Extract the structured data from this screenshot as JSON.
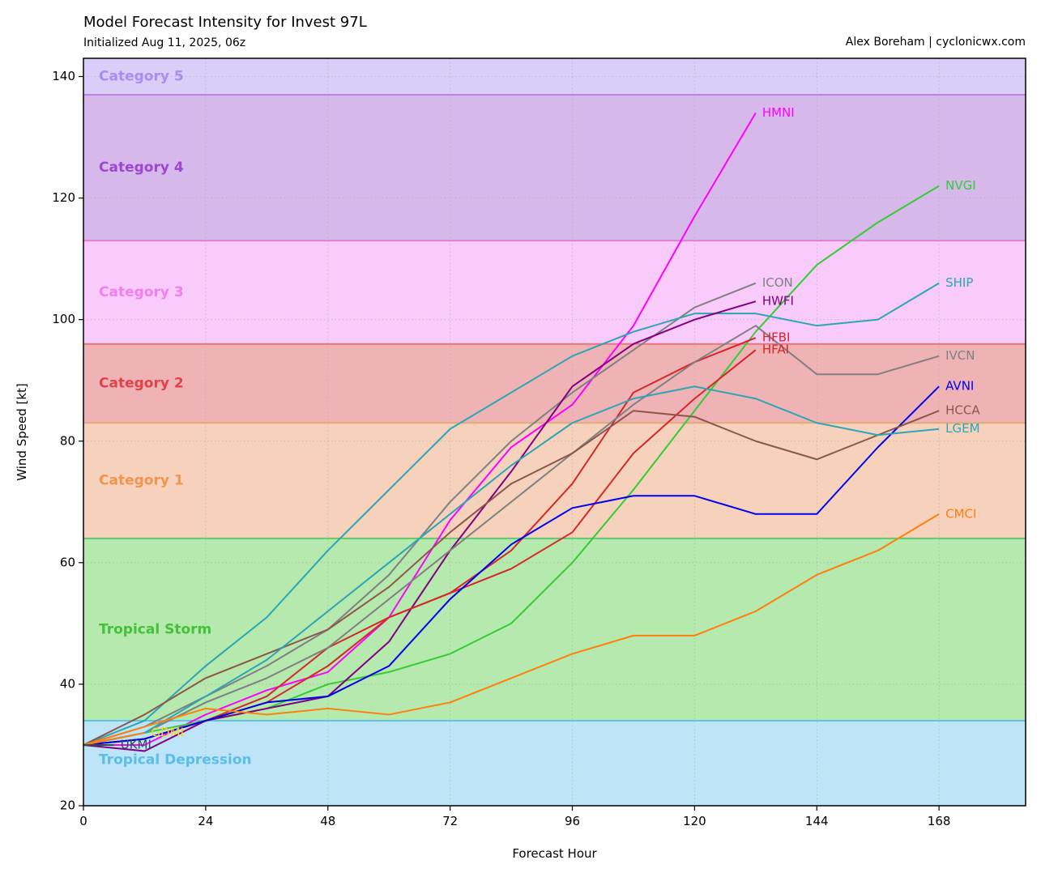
{
  "header": {
    "title": "Model Forecast Intensity for Invest 97L",
    "subtitle": "Initialized Aug 11, 2025, 06z",
    "credit": "Alex Boreham | cyclonicwx.com"
  },
  "chart_data": {
    "type": "line",
    "title": "Model Forecast Intensity for Invest 97L",
    "subtitle": "Initialized Aug 11, 2025, 06z",
    "xlabel": "Forecast Hour",
    "ylabel": "Wind Speed [kt]",
    "xlim": [
      0,
      185
    ],
    "ylim": [
      20,
      143
    ],
    "xticks": [
      0,
      24,
      48,
      72,
      96,
      120,
      144,
      168
    ],
    "yticks": [
      20,
      40,
      60,
      80,
      100,
      120,
      140
    ],
    "grid": true,
    "bands": [
      {
        "label": "Tropical Depression",
        "from": 20,
        "to": 34,
        "fill": "#bde5f7",
        "line": "#5fc4ea",
        "text": "#5bbde8"
      },
      {
        "label": "Tropical Storm",
        "from": 34,
        "to": 64,
        "fill": "#b5e9ad",
        "line": "#62c86e",
        "text": "#44c03a"
      },
      {
        "label": "Category 1",
        "from": 64,
        "to": 83,
        "fill": "#f6d2bd",
        "line": "#e0ab77",
        "text": "#ef9550"
      },
      {
        "label": "Category 2",
        "from": 83,
        "to": 96,
        "fill": "#efb3b6",
        "line": "#e57778",
        "text": "#df4347"
      },
      {
        "label": "Category 3",
        "from": 96,
        "to": 113,
        "fill": "#f8cbfb",
        "line": "#e47cd4",
        "text": "#f27fef"
      },
      {
        "label": "Category 4",
        "from": 113,
        "to": 137,
        "fill": "#d6b8eb",
        "line": "#bc80ea",
        "text": "#9e46d2"
      },
      {
        "label": "Category 5",
        "from": 137,
        "to": 143,
        "fill": "#d8cef8",
        "line": "#bc80ea",
        "text": "#a68ff0"
      }
    ],
    "series": [
      {
        "name": "HMNI",
        "color": "#ff00ff",
        "x": [
          0,
          6,
          12,
          24,
          36,
          48,
          60,
          72,
          84,
          96,
          108,
          120,
          132
        ],
        "y": [
          30,
          30,
          30,
          35,
          39,
          42,
          51,
          67,
          79,
          86,
          99,
          117,
          134
        ]
      },
      {
        "name": "NVGI",
        "color": "#33cc33",
        "x": [
          0,
          12,
          24,
          36,
          48,
          60,
          72,
          84,
          96,
          108,
          120,
          132,
          144,
          156,
          168
        ],
        "y": [
          30,
          32,
          34,
          36,
          40,
          42,
          45,
          50,
          60,
          72,
          85,
          98,
          109,
          116,
          122
        ]
      },
      {
        "name": "ICON",
        "color": "#808080",
        "x": [
          0,
          12,
          24,
          36,
          48,
          60,
          72,
          84,
          96,
          108,
          120,
          132
        ],
        "y": [
          30,
          33,
          38,
          43,
          49,
          58,
          70,
          80,
          88,
          95,
          102,
          106
        ]
      },
      {
        "name": "SHIP",
        "color": "#2ca5b5",
        "x": [
          0,
          12,
          24,
          36,
          48,
          60,
          72,
          84,
          96,
          108,
          120,
          132,
          144,
          156,
          168
        ],
        "y": [
          30,
          34,
          43,
          51,
          62,
          72,
          82,
          88,
          94,
          98,
          101,
          101,
          99,
          100,
          106
        ]
      },
      {
        "name": "HWFI",
        "color": "#800080",
        "x": [
          0,
          12,
          24,
          36,
          48,
          60,
          72,
          84,
          96,
          108,
          120,
          132
        ],
        "y": [
          30,
          29,
          34,
          36,
          38,
          47,
          62,
          75,
          89,
          96,
          100,
          103
        ]
      },
      {
        "name": "HFBI",
        "color": "#d62728",
        "x": [
          0,
          12,
          24,
          36,
          48,
          60,
          72,
          84,
          96,
          108,
          120,
          132
        ],
        "y": [
          30,
          31,
          34,
          37,
          43,
          51,
          55,
          62,
          73,
          88,
          93,
          97
        ]
      },
      {
        "name": "HFAI",
        "color": "#d62728",
        "x": [
          0,
          12,
          24,
          36,
          48,
          60,
          72,
          84,
          96,
          108,
          120,
          132
        ],
        "y": [
          30,
          31,
          34,
          38,
          46,
          51,
          55,
          59,
          65,
          78,
          87,
          95
        ]
      },
      {
        "name": "IVCN",
        "color": "#808080",
        "x": [
          0,
          12,
          24,
          36,
          48,
          60,
          72,
          84,
          96,
          108,
          120,
          132,
          144,
          156,
          168
        ],
        "y": [
          30,
          32,
          37,
          41,
          46,
          54,
          62,
          70,
          78,
          86,
          93,
          99,
          91,
          91,
          94
        ]
      },
      {
        "name": "AVNI",
        "color": "#0000ee",
        "x": [
          0,
          12,
          24,
          36,
          48,
          60,
          72,
          84,
          96,
          108,
          120,
          132,
          144,
          156,
          168
        ],
        "y": [
          30,
          31,
          34,
          37,
          38,
          43,
          54,
          63,
          69,
          71,
          71,
          68,
          68,
          79,
          89
        ]
      },
      {
        "name": "HCCA",
        "color": "#8c564b",
        "x": [
          0,
          12,
          24,
          36,
          48,
          60,
          72,
          84,
          96,
          108,
          120,
          132,
          144,
          156,
          168
        ],
        "y": [
          30,
          35,
          41,
          45,
          49,
          56,
          65,
          73,
          78,
          85,
          84,
          80,
          77,
          81,
          85
        ]
      },
      {
        "name": "LGEM",
        "color": "#2ca5b5",
        "x": [
          0,
          12,
          24,
          36,
          48,
          60,
          72,
          84,
          96,
          108,
          120,
          132,
          144,
          156,
          168
        ],
        "y": [
          30,
          32,
          38,
          44,
          52,
          60,
          68,
          76,
          83,
          87,
          89,
          87,
          83,
          81,
          82
        ]
      },
      {
        "name": "CMCI",
        "color": "#ff7f0e",
        "x": [
          0,
          12,
          24,
          36,
          48,
          60,
          72,
          84,
          96,
          108,
          120,
          132,
          144,
          156,
          168
        ],
        "y": [
          30,
          33,
          36,
          35,
          36,
          35,
          37,
          41,
          45,
          48,
          48,
          52,
          58,
          62,
          68
        ]
      },
      {
        "name": "GDMI",
        "color": "#ff7f0e",
        "label_color": "#ffd700",
        "x": [
          0,
          12
        ],
        "y": [
          30,
          32
        ]
      },
      {
        "name": "UKMI",
        "color": "#2f4f4f",
        "x": [
          0,
          6
        ],
        "y": [
          30,
          30
        ]
      }
    ]
  }
}
